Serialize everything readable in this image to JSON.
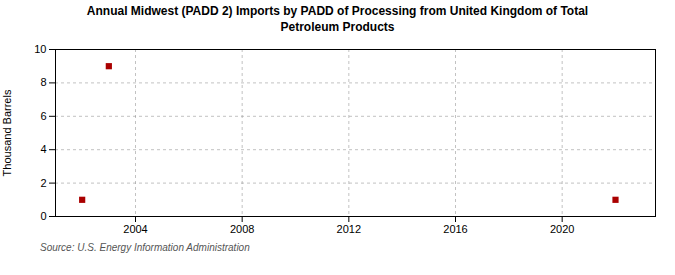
{
  "chart_data": {
    "type": "scatter",
    "title": "Annual Midwest (PADD 2) Imports by PADD of Processing from United Kingdom of Total\nPetroleum Products",
    "y_label": "Thousand Barrels",
    "source": "Source: U.S. Energy Information Administration",
    "x": [
      2002,
      2003,
      2022
    ],
    "values": [
      1,
      9,
      1
    ],
    "color": "#aa0000",
    "marker": "square",
    "xlim": [
      2001,
      2023.5
    ],
    "ylim": [
      0,
      10
    ],
    "xticks": [
      2004,
      2008,
      2012,
      2016,
      2020
    ],
    "yticks": [
      0,
      2,
      4,
      6,
      8,
      10
    ],
    "grid": true
  }
}
